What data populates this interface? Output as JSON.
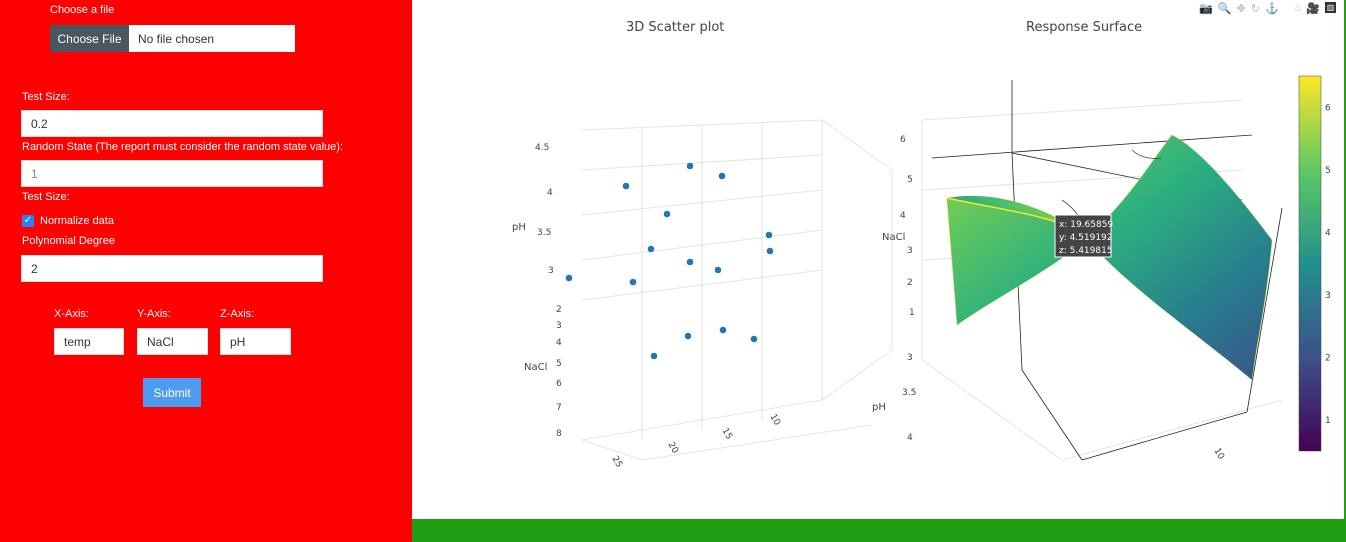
{
  "form": {
    "file_label": "Choose a file",
    "file_button": "Choose File",
    "file_status": "No file chosen",
    "test_size_label": "Test Size:",
    "test_size_value": "0.2",
    "random_state_label": "Random State (The report must consider the random state value):",
    "random_state_value": "1",
    "test_size_label_2": "Test Size:",
    "normalize_label": "Normalize data",
    "normalize_checked": true,
    "poly_label": "Polynomial Degree",
    "poly_value": "2",
    "x_axis_label": "X-Axis:",
    "x_axis_value": "temp",
    "y_axis_label": "Y-Axis:",
    "y_axis_value": "NaCl",
    "z_axis_label": "Z-Axis:",
    "z_axis_value": "pH",
    "submit_label": "Submit"
  },
  "colors": {
    "sidebar": "#ff0000",
    "green_bar": "#1e9e12",
    "submit": "#4e9cf2",
    "marker": "#1f77b4"
  },
  "modebar_icons": [
    "camera-icon",
    "zoom-icon",
    "pan-icon",
    "orbit-icon",
    "turntable-icon",
    "home-icon",
    "camera-view-icon",
    "plotly-logo-icon"
  ],
  "chart_data": [
    {
      "type": "scatter",
      "title": "3D Scatter plot",
      "x_axis_ticks": [
        "25",
        "20",
        "15",
        "10"
      ],
      "y_axis_title": "NaCl",
      "y_axis_ticks": [
        "2",
        "3",
        "4",
        "5",
        "6",
        "7",
        "8"
      ],
      "z_axis_title": "pH",
      "z_axis_ticks": [
        "3",
        "3.5",
        "4",
        "4.5"
      ],
      "points_count": 15
    },
    {
      "type": "surface",
      "title": "Response Surface",
      "y_axis_title": "NaCl",
      "y_axis_ticks": [
        "1",
        "2",
        "3",
        "4",
        "5",
        "6"
      ],
      "z_axis_title": "pH",
      "z_axis_ticks": [
        "3",
        "3.5",
        "4"
      ],
      "x_axis_ticks": [
        "10"
      ],
      "colorscale": "viridis",
      "colorbar_ticks": [
        "1",
        "2",
        "3",
        "4",
        "5",
        "6"
      ],
      "colorbar_range": [
        0.5,
        6.5
      ],
      "hover": {
        "x": "x: 19.65859",
        "y": "y: 4.519192",
        "z": "z: 5.419815"
      }
    }
  ]
}
